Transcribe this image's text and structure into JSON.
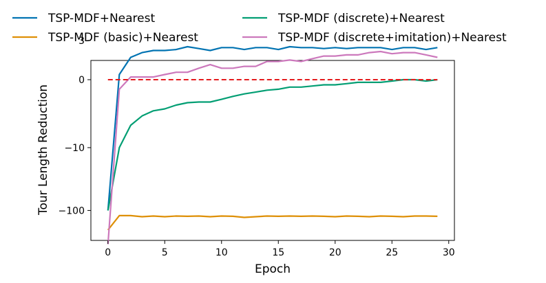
{
  "chart_data": {
    "type": "line",
    "xlabel": "Epoch",
    "ylabel": "Tour Length Reduction",
    "xlim": [
      -1.5,
      30.5
    ],
    "x_ticks": [
      0,
      5,
      10,
      15,
      20,
      25,
      30
    ],
    "x_tick_labels": [
      "0",
      "5",
      "10",
      "15",
      "20",
      "25",
      "30"
    ],
    "y_scale": "symlog",
    "y_ticks": [
      3,
      0,
      -10,
      -100
    ],
    "y_tick_labels": [
      "3",
      "0",
      "−10",
      "−100"
    ],
    "legend_placement": "top, two columns, above plot",
    "x": [
      0,
      1,
      2,
      3,
      4,
      5,
      6,
      7,
      8,
      9,
      10,
      11,
      12,
      13,
      14,
      15,
      16,
      17,
      18,
      19,
      20,
      21,
      22,
      23,
      24,
      25,
      26,
      27,
      28,
      29
    ],
    "series": [
      {
        "name": "TSP-MDF+Nearest",
        "color": "#0173b2",
        "values": [
          -100,
          0.2,
          1.2,
          1.6,
          1.8,
          1.8,
          1.9,
          2.2,
          2.0,
          1.8,
          2.1,
          2.1,
          1.9,
          2.1,
          2.1,
          1.9,
          2.2,
          2.1,
          2.1,
          2.0,
          2.1,
          2.0,
          2.1,
          2.1,
          2.1,
          1.9,
          2.1,
          2.1,
          1.9,
          2.1
        ]
      },
      {
        "name": "TSP-MDF (basic)+Nearest",
        "color": "#de8f05",
        "values": [
          -200,
          -120,
          -120,
          -125,
          -122,
          -125,
          -122,
          -123,
          -122,
          -125,
          -122,
          -123,
          -128,
          -125,
          -122,
          -123,
          -122,
          -123,
          -122,
          -123,
          -125,
          -122,
          -123,
          -125,
          -122,
          -123,
          -125,
          -122,
          -122,
          -123
        ]
      },
      {
        "name": "TSP-MDF (discrete)+Nearest",
        "color": "#029e73",
        "values": [
          -100,
          -10,
          -4,
          -2.6,
          -2.0,
          -1.8,
          -1.45,
          -1.25,
          -1.2,
          -1.2,
          -1.0,
          -0.8,
          -0.65,
          -0.55,
          -0.45,
          -0.4,
          -0.3,
          -0.3,
          -0.25,
          -0.2,
          -0.2,
          -0.15,
          -0.1,
          -0.1,
          -0.1,
          -0.05,
          0,
          0,
          -0.05,
          0
        ]
      },
      {
        "name": "TSP-MDF (discrete+imitation)+Nearest",
        "color": "#cc78bc",
        "values": [
          -330,
          -0.4,
          0.1,
          0.1,
          0.1,
          0.2,
          0.3,
          0.3,
          0.5,
          0.7,
          0.5,
          0.5,
          0.6,
          0.6,
          0.9,
          0.9,
          1.0,
          0.9,
          1.1,
          1.3,
          1.3,
          1.4,
          1.4,
          1.6,
          1.7,
          1.5,
          1.6,
          1.6,
          1.4,
          1.2
        ]
      }
    ],
    "reference_line": {
      "y": 0,
      "color": "#e41a1c",
      "style": "dashed"
    }
  }
}
